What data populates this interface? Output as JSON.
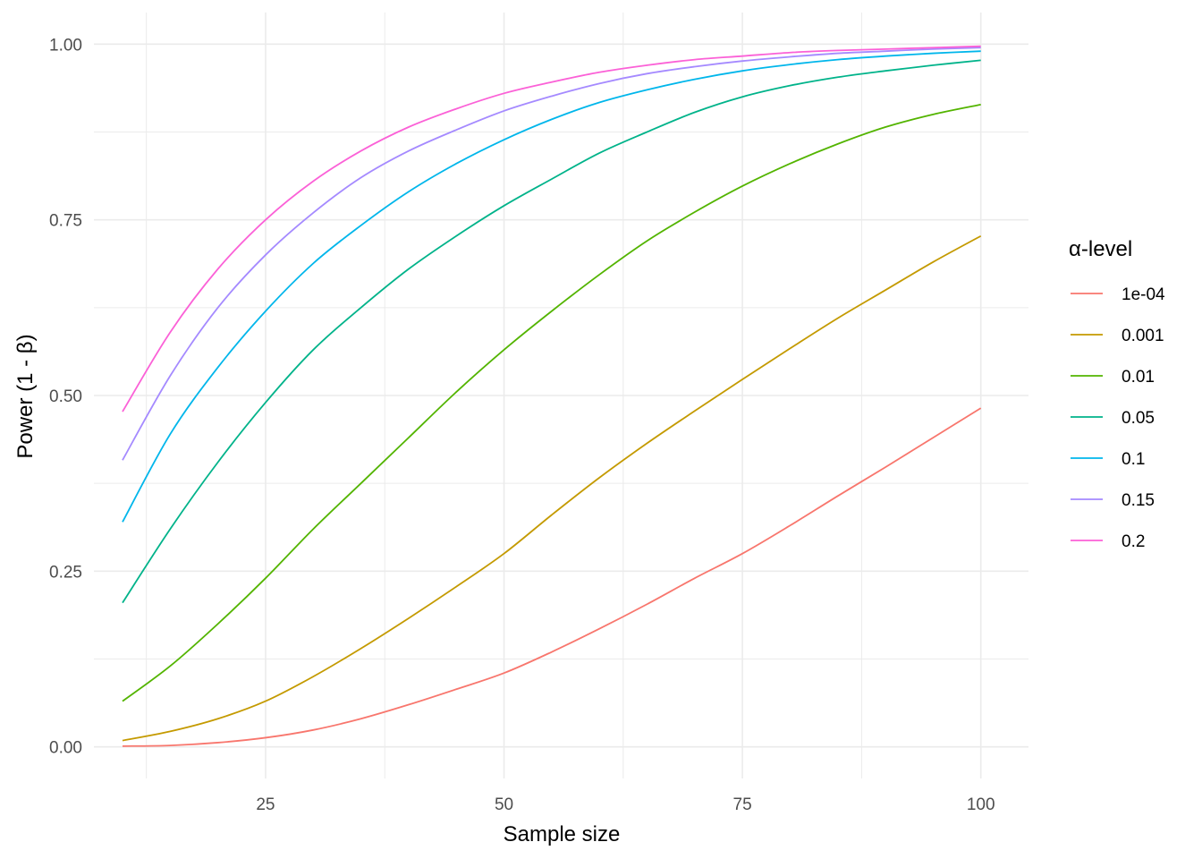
{
  "chart_data": {
    "type": "line",
    "title": "",
    "xlabel": "Sample size",
    "ylabel": "Power (1 - β)",
    "xlim": [
      7,
      105
    ],
    "ylim": [
      -0.045,
      1.045
    ],
    "x_ticks": [
      25,
      50,
      75,
      100
    ],
    "x_tick_labels": [
      "25",
      "50",
      "75",
      "100"
    ],
    "y_ticks": [
      0,
      0.25,
      0.5,
      0.75,
      1.0
    ],
    "y_tick_labels": [
      "0.00",
      "0.25",
      "0.50",
      "0.75",
      "1.00"
    ],
    "grid": true,
    "legend": {
      "title": "α-level",
      "position": "right"
    },
    "x": [
      10,
      15,
      20,
      25,
      30,
      35,
      40,
      45,
      50,
      55,
      60,
      65,
      70,
      75,
      80,
      85,
      90,
      95,
      100
    ],
    "series": [
      {
        "name": "1e-04",
        "color": "#F8766D",
        "values": [
          0.001,
          0.002,
          0.006,
          0.013,
          0.024,
          0.04,
          0.06,
          0.082,
          0.105,
          0.135,
          0.168,
          0.203,
          0.24,
          0.275,
          0.315,
          0.357,
          0.398,
          0.44,
          0.482
        ]
      },
      {
        "name": "0.001",
        "color": "#C49A00",
        "values": [
          0.009,
          0.022,
          0.04,
          0.065,
          0.1,
          0.14,
          0.183,
          0.228,
          0.275,
          0.33,
          0.383,
          0.432,
          0.478,
          0.523,
          0.567,
          0.61,
          0.65,
          0.69,
          0.727
        ]
      },
      {
        "name": "0.01",
        "color": "#53B400",
        "values": [
          0.065,
          0.115,
          0.175,
          0.24,
          0.31,
          0.375,
          0.44,
          0.505,
          0.565,
          0.62,
          0.672,
          0.72,
          0.761,
          0.798,
          0.83,
          0.858,
          0.882,
          0.9,
          0.914
        ]
      },
      {
        "name": "0.05",
        "color": "#00B38A",
        "values": [
          0.205,
          0.31,
          0.405,
          0.49,
          0.565,
          0.625,
          0.68,
          0.727,
          0.77,
          0.808,
          0.845,
          0.875,
          0.903,
          0.925,
          0.941,
          0.953,
          0.962,
          0.97,
          0.977
        ]
      },
      {
        "name": "0.1",
        "color": "#00B6EB",
        "values": [
          0.32,
          0.445,
          0.54,
          0.62,
          0.688,
          0.742,
          0.79,
          0.83,
          0.864,
          0.893,
          0.917,
          0.935,
          0.95,
          0.962,
          0.971,
          0.978,
          0.983,
          0.987,
          0.99
        ]
      },
      {
        "name": "0.15",
        "color": "#A58AFF",
        "values": [
          0.408,
          0.528,
          0.625,
          0.7,
          0.76,
          0.81,
          0.848,
          0.878,
          0.905,
          0.926,
          0.944,
          0.958,
          0.968,
          0.976,
          0.982,
          0.987,
          0.99,
          0.993,
          0.995
        ]
      },
      {
        "name": "0.2",
        "color": "#FB61D7",
        "values": [
          0.477,
          0.59,
          0.68,
          0.75,
          0.805,
          0.848,
          0.882,
          0.908,
          0.93,
          0.946,
          0.96,
          0.97,
          0.978,
          0.983,
          0.988,
          0.991,
          0.993,
          0.995,
          0.997
        ]
      }
    ]
  }
}
